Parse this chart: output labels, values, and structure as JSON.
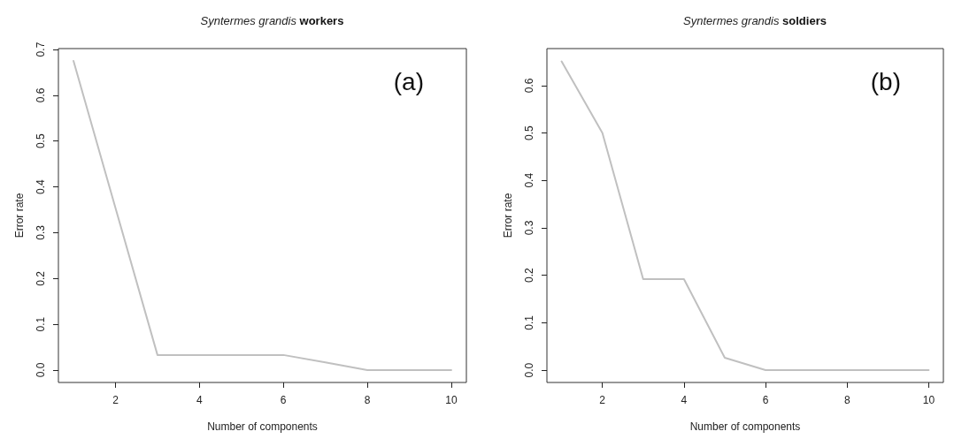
{
  "chart_data": [
    {
      "type": "line",
      "title": "Syntermes grandis workers",
      "xlabel": "Number of components",
      "ylabel": "Error rate",
      "annotations": [
        "(a)"
      ],
      "x": [
        1,
        2,
        3,
        4,
        5,
        6,
        7,
        8,
        9,
        10
      ],
      "series": [
        {
          "color": "#c0c0c0",
          "values": [
            0.675,
            0.354,
            0.033,
            0.033,
            0.033,
            0.033,
            0.017,
            0,
            0,
            0
          ]
        }
      ],
      "xlim": [
        0.64,
        10.36
      ],
      "xticks": [
        2,
        4,
        6,
        8,
        10
      ],
      "ylim": [
        -0.027,
        0.702
      ],
      "yticks": [
        {
          "value": 0,
          "label": "0.0"
        },
        0.1,
        0.2,
        0.3,
        0.4,
        0.5,
        0.6,
        0.7
      ],
      "grid": false,
      "marker": "none",
      "line_style": "solid"
    },
    {
      "type": "line",
      "title": "Syntermes grandis soldiers",
      "xlabel": "Number of components",
      "ylabel": "Error rate",
      "annotations": [
        "(b)"
      ],
      "x": [
        1,
        2,
        3,
        4,
        5,
        6,
        7,
        8,
        9,
        10
      ],
      "series": [
        {
          "color": "#c0c0c0",
          "values": [
            0.651,
            0.5,
            0.192,
            0.192,
            0.026,
            0,
            0,
            0,
            0,
            0
          ]
        }
      ],
      "xlim": [
        0.64,
        10.36
      ],
      "xticks": [
        2,
        4,
        6,
        8,
        10
      ],
      "ylim": [
        -0.026,
        0.678
      ],
      "yticks": [
        {
          "value": 0,
          "label": "0.0"
        },
        0.1,
        0.2,
        0.3,
        0.4,
        0.5,
        0.6
      ],
      "grid": false,
      "marker": "none",
      "line_style": "solid"
    }
  ]
}
